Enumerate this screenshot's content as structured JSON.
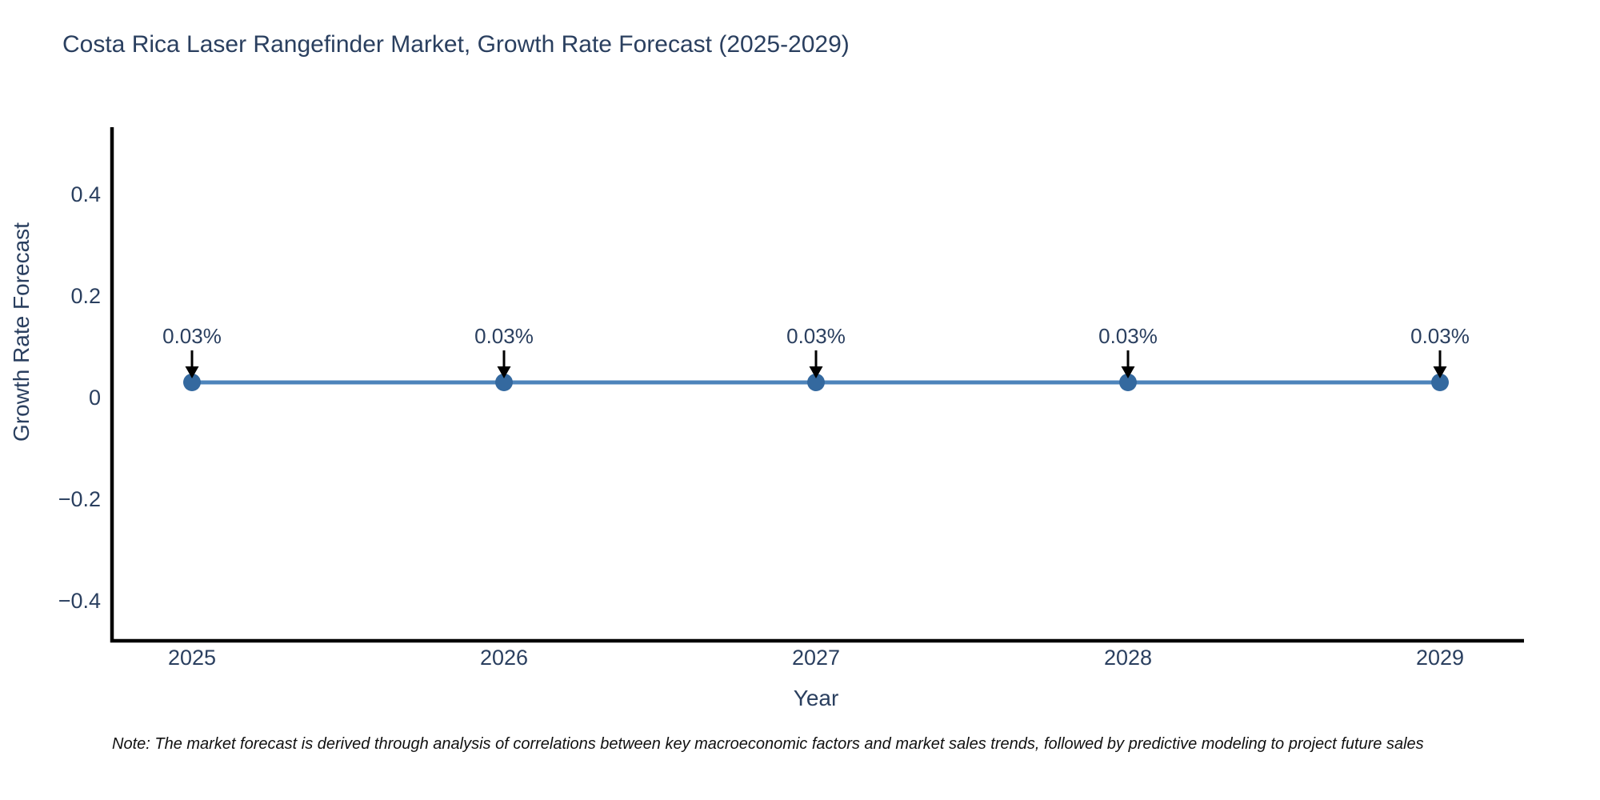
{
  "note": {
    "text": "Note: The market forecast is derived through analysis of correlations between key macroeconomic factors and market sales trends, followed by predictive modeling to project future sales"
  },
  "chart_data": {
    "type": "line",
    "title": "Costa Rica Laser Rangefinder Market, Growth Rate Forecast (2025-2029)",
    "xlabel": "Year",
    "ylabel": "Growth Rate Forecast",
    "categories": [
      "2025",
      "2026",
      "2027",
      "2028",
      "2029"
    ],
    "series": [
      {
        "name": "Growth Rate Forecast",
        "values": [
          0.03,
          0.03,
          0.03,
          0.03,
          0.03
        ]
      }
    ],
    "point_labels": [
      "0.03%",
      "0.03%",
      "0.03%",
      "0.03%",
      "0.03%"
    ],
    "yticks": [
      {
        "value": 0.4,
        "label": "0.4"
      },
      {
        "value": 0.2,
        "label": "0.2"
      },
      {
        "value": 0,
        "label": "0"
      },
      {
        "value": -0.2,
        "label": "−0.2"
      },
      {
        "value": -0.4,
        "label": "−0.4"
      }
    ],
    "ylim": [
      -0.48,
      0.53
    ],
    "grid": false,
    "legend": false,
    "colors": {
      "line": "#4d84bb",
      "marker": "#34699f",
      "arrow": "#000000",
      "axis": "#000000",
      "text": "#2a3f5f"
    }
  }
}
